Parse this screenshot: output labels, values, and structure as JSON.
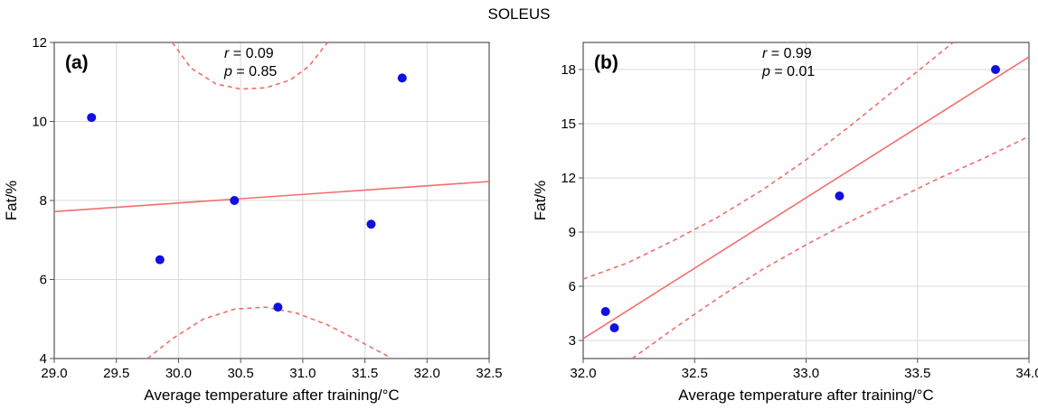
{
  "figure": {
    "title": "SOLEUS"
  },
  "colors": {
    "fit": "#f26d6d",
    "ci": "#f26d6d",
    "point": "#1010e0",
    "grid": "#d9d9d9",
    "frame": "#555555"
  },
  "chart_data": [
    {
      "type": "scatter",
      "panel_label": "(a)",
      "stats": {
        "r_label": "r",
        "r_value": " = 0.09",
        "p_label": "p",
        "p_value": " = 0.85"
      },
      "xlabel": "Average temperature after training/°C",
      "ylabel": "Fat/%",
      "xlim": [
        29.0,
        32.5
      ],
      "ylim": [
        4,
        12
      ],
      "xticks": [
        "29.0",
        "29.5",
        "30.0",
        "30.5",
        "31.0",
        "31.5",
        "32.0",
        "32.5"
      ],
      "yticks": [
        "4",
        "6",
        "8",
        "10",
        "12"
      ],
      "grid": true,
      "points": [
        {
          "x": 29.3,
          "y": 10.1
        },
        {
          "x": 29.85,
          "y": 6.5
        },
        {
          "x": 30.45,
          "y": 8.0
        },
        {
          "x": 30.8,
          "y": 5.3
        },
        {
          "x": 31.55,
          "y": 7.4
        },
        {
          "x": 31.8,
          "y": 11.1
        }
      ],
      "fit_line": [
        {
          "x": 29.0,
          "y": 7.72
        },
        {
          "x": 32.5,
          "y": 8.48
        }
      ],
      "ci_upper": [
        {
          "x": 29.95,
          "y": 12.0
        },
        {
          "x": 30.1,
          "y": 11.35
        },
        {
          "x": 30.3,
          "y": 10.95
        },
        {
          "x": 30.5,
          "y": 10.82
        },
        {
          "x": 30.7,
          "y": 10.85
        },
        {
          "x": 30.9,
          "y": 11.05
        },
        {
          "x": 31.05,
          "y": 11.4
        },
        {
          "x": 31.2,
          "y": 12.0
        }
      ],
      "ci_lower": [
        {
          "x": 29.75,
          "y": 4.0
        },
        {
          "x": 29.95,
          "y": 4.5
        },
        {
          "x": 30.2,
          "y": 5.0
        },
        {
          "x": 30.45,
          "y": 5.25
        },
        {
          "x": 30.7,
          "y": 5.3
        },
        {
          "x": 30.95,
          "y": 5.15
        },
        {
          "x": 31.2,
          "y": 4.85
        },
        {
          "x": 31.45,
          "y": 4.45
        },
        {
          "x": 31.72,
          "y": 4.0
        }
      ]
    },
    {
      "type": "scatter",
      "panel_label": "(b)",
      "stats": {
        "r_label": "r",
        "r_value": " = 0.99",
        "p_label": "p",
        "p_value": " = 0.01"
      },
      "xlabel": "Average temperature after training/°C",
      "ylabel": "Fat/%",
      "xlim": [
        32.0,
        34.0
      ],
      "ylim": [
        2.0,
        19.5
      ],
      "xticks": [
        "32.0",
        "32.5",
        "33.0",
        "33.5",
        "34.0"
      ],
      "yticks": [
        "3",
        "6",
        "9",
        "12",
        "15",
        "18"
      ],
      "grid": true,
      "points": [
        {
          "x": 32.1,
          "y": 4.6
        },
        {
          "x": 32.14,
          "y": 3.7
        },
        {
          "x": 33.15,
          "y": 11.0
        },
        {
          "x": 33.85,
          "y": 18.0
        }
      ],
      "fit_line": [
        {
          "x": 32.0,
          "y": 3.1
        },
        {
          "x": 34.0,
          "y": 18.7
        }
      ],
      "ci_upper": [
        {
          "x": 32.0,
          "y": 6.4
        },
        {
          "x": 32.2,
          "y": 7.3
        },
        {
          "x": 32.4,
          "y": 8.5
        },
        {
          "x": 32.6,
          "y": 9.8
        },
        {
          "x": 32.8,
          "y": 11.3
        },
        {
          "x": 33.0,
          "y": 13.0
        },
        {
          "x": 33.2,
          "y": 14.9
        },
        {
          "x": 33.4,
          "y": 16.9
        },
        {
          "x": 33.6,
          "y": 18.9
        },
        {
          "x": 33.66,
          "y": 19.5
        }
      ],
      "ci_lower": [
        {
          "x": 32.22,
          "y": 2.0
        },
        {
          "x": 32.4,
          "y": 3.6
        },
        {
          "x": 32.6,
          "y": 5.3
        },
        {
          "x": 32.8,
          "y": 6.9
        },
        {
          "x": 33.0,
          "y": 8.3
        },
        {
          "x": 33.2,
          "y": 9.6
        },
        {
          "x": 33.4,
          "y": 10.8
        },
        {
          "x": 33.6,
          "y": 12.0
        },
        {
          "x": 33.8,
          "y": 13.1
        },
        {
          "x": 34.0,
          "y": 14.3
        }
      ]
    }
  ]
}
